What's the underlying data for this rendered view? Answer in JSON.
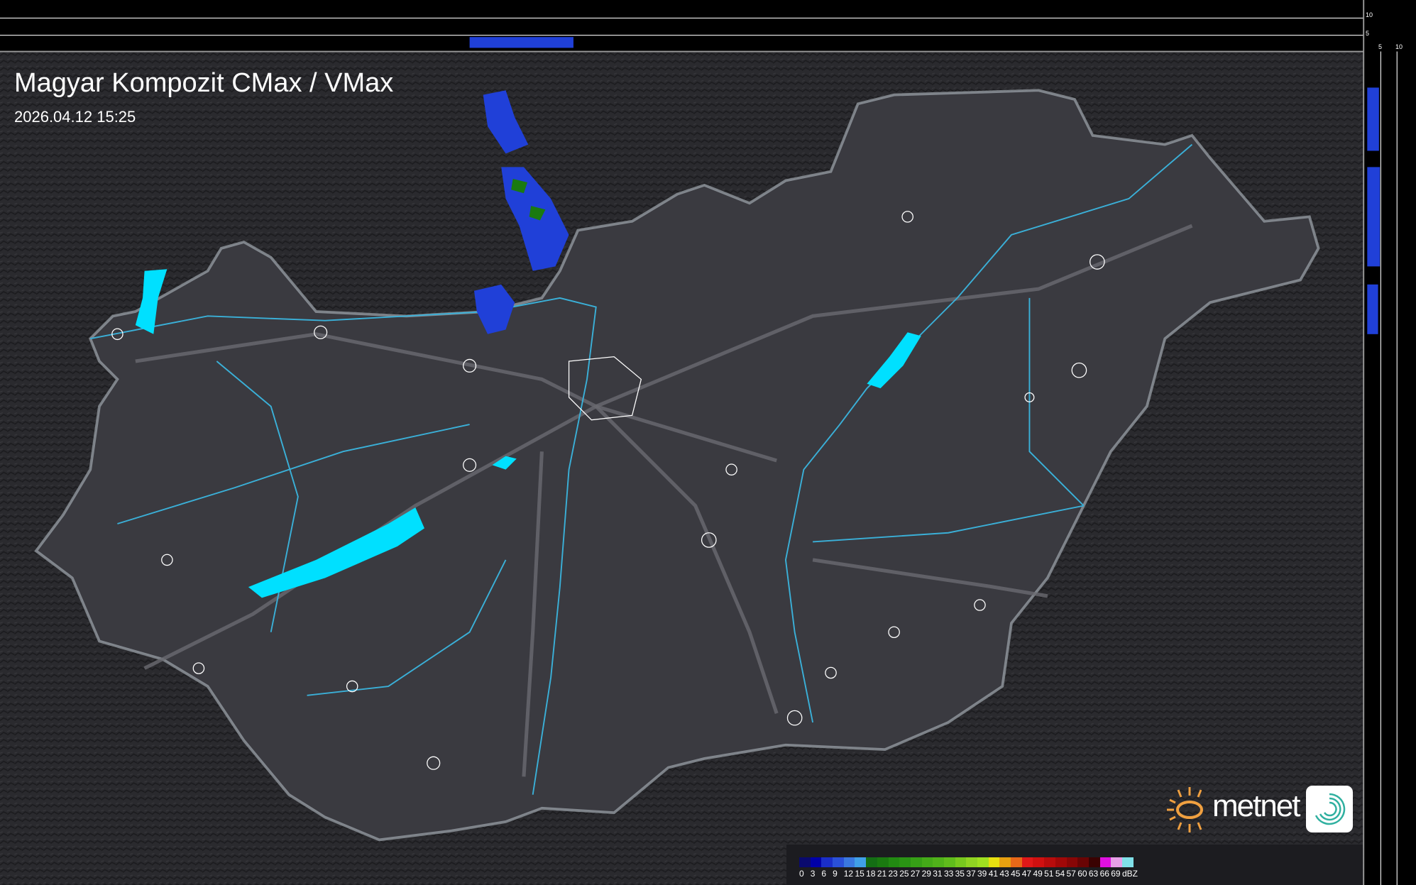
{
  "header": {
    "title": "Magyar Kompozit CMax / VMax",
    "timestamp": "2026.04.12 15:25"
  },
  "profile_axes": {
    "top_ticks": [
      "10",
      "5"
    ],
    "right_ticks": [
      "5",
      "10"
    ]
  },
  "legend": {
    "unit": "dBZ",
    "labels": [
      "0",
      "3",
      "6",
      "9",
      "12",
      "15",
      "18",
      "21",
      "23",
      "25",
      "27",
      "29",
      "31",
      "33",
      "35",
      "37",
      "39",
      "41",
      "43",
      "45",
      "47",
      "49",
      "51",
      "54",
      "57",
      "60",
      "63",
      "66",
      "69"
    ],
    "colors": [
      "#0a0a6e",
      "#0000a8",
      "#1a2ec8",
      "#2a50d8",
      "#3a78e0",
      "#40a0e8",
      "#146e14",
      "#1a7a10",
      "#228a12",
      "#2a9414",
      "#36a016",
      "#44aa18",
      "#50b21a",
      "#60bc1c",
      "#78c81e",
      "#90d422",
      "#a0e020",
      "#e8e010",
      "#e8a010",
      "#e86818",
      "#e01818",
      "#d01010",
      "#b80c0c",
      "#a00808",
      "#880606",
      "#6a0404",
      "#3a0202",
      "#e010e0",
      "#e8a0e8",
      "#80e0e8"
    ]
  },
  "logo": {
    "brand": "metnet",
    "icon": "metnet-swirl-icon"
  },
  "colors": {
    "country_fill": "#3a3a40",
    "border": "#9aa0a8",
    "rivers": "#3ab0d8",
    "lakes": "#00e0ff",
    "cities": "#ffffff",
    "radar_weak": "#2040d8",
    "radar_mid": "#1a7a10"
  }
}
